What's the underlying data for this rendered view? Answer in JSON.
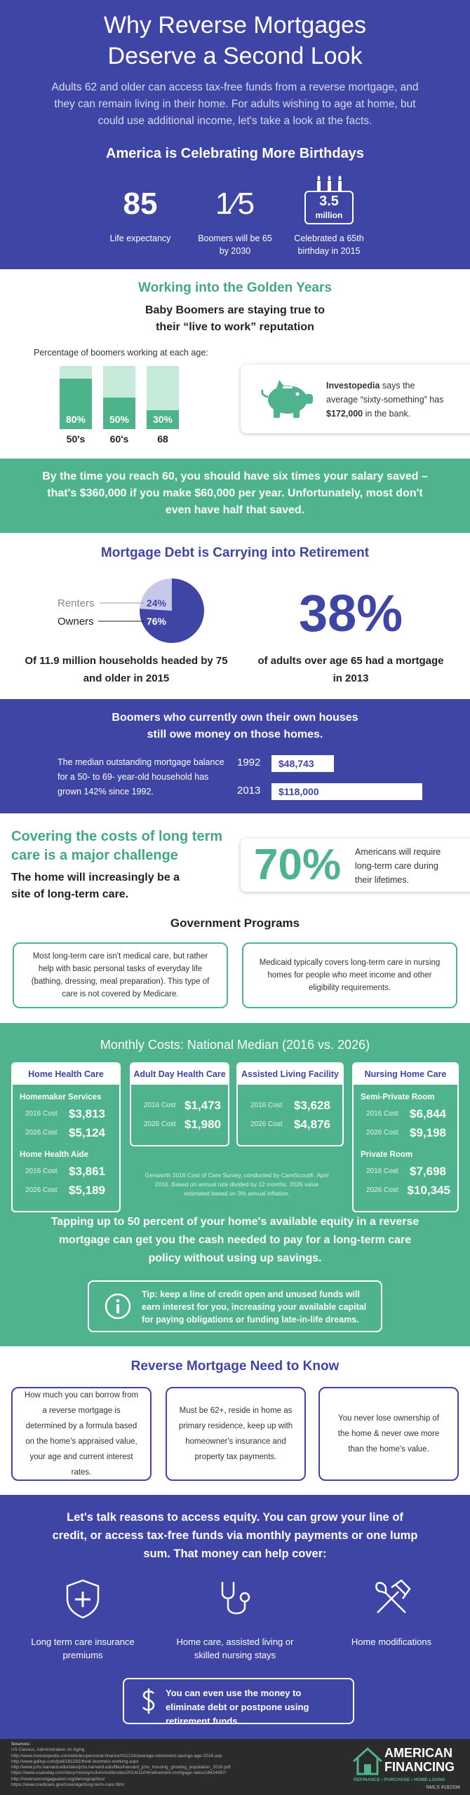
{
  "header": {
    "title": "Why Reverse Mortgages Deserve a Second Look",
    "intro": "Adults 62 and older can access tax-free funds from a reverse mortgage, and they can remain living in their home. For adults wishing to age at home, but could use additional income, let's take a look at the facts.",
    "birthdays_heading": "America is Celebrating More Birthdays",
    "stats": [
      {
        "value": "85",
        "label": "Life expectancy"
      },
      {
        "value": "1⁄5",
        "label": "Boomers will be 65 by 2030"
      },
      {
        "value": "3.5",
        "unit": "million",
        "label": "Celebrated a 65th birthday in 2015"
      }
    ]
  },
  "working": {
    "heading": "Working into the Golden Years",
    "subheading": "Baby Boomers are staying true to their “live to work” reputation",
    "chart_label": "Percentage of boomers working at each age:",
    "bars": [
      {
        "category": "50's",
        "value": 80,
        "value_label": "80%"
      },
      {
        "category": "60's",
        "value": 50,
        "value_label": "50%"
      },
      {
        "category": "68",
        "value": 30,
        "value_label": "30%"
      }
    ],
    "callout": {
      "source": "Investopedia",
      "text_before": " says the average “sixty-something” has ",
      "amount": "$172,000",
      "text_after": " in the bank."
    }
  },
  "savings_banner": "By the time you reach 60, you should have six times your salary saved – that's $360,000 if you make $60,000 per year. Unfortunately, most don't even have half that saved.",
  "mortgage_debt": {
    "heading": "Mortgage Debt is Carrying into Retirement",
    "pie": {
      "slices": [
        {
          "name": "Renters",
          "value": 24,
          "value_label": "24%"
        },
        {
          "name": "Owners",
          "value": 76,
          "value_label": "76%"
        }
      ],
      "caption": "Of 11.9 million households headed by 75 and older in 2015"
    },
    "stat": {
      "value": "38%",
      "caption": "of adults over age 65 had a mortgage in 2013"
    }
  },
  "outstanding": {
    "heading": "Boomers who currently own their own houses still owe money on those homes.",
    "text": "The median outstanding mortgage balance for a 50- to 69- year-old household has grown 142% since 1992.",
    "bars": [
      {
        "year": "1992",
        "value": 48743,
        "value_label": "$48,743"
      },
      {
        "year": "2013",
        "value": 118000,
        "value_label": "$118,000"
      }
    ]
  },
  "long_term_care": {
    "heading": "Covering the costs of long term care is a major challenge",
    "subheading": "The home will increasingly be a site of long-term care.",
    "callout": {
      "value": "70%",
      "text": "Americans will require long-term care during their lifetimes."
    },
    "programs_heading": "Government Programs",
    "programs": [
      "Most long-term care isn't medical care, but rather help with basic personal tasks of everyday life (bathing, dressing, meal preparation). This type of care is not covered by Medicare.",
      "Medicaid typically covers long-term care in nursing homes for people who meet income and other eligibility requirements."
    ]
  },
  "monthly_costs": {
    "heading": "Monthly Costs: National Median (2016 vs. 2026)",
    "cards": [
      {
        "title": "Home Health Care",
        "groups": [
          {
            "name": "Homemaker Services",
            "rows": [
              {
                "label": "2016 Cost",
                "value": "$3,813"
              },
              {
                "label": "2026 Cost",
                "value": "$5,124"
              }
            ]
          },
          {
            "name": "Home Health Aide",
            "rows": [
              {
                "label": "2016 Cost",
                "value": "$3,861"
              },
              {
                "label": "2026 Cost",
                "value": "$5,189"
              }
            ]
          }
        ]
      },
      {
        "title": "Adult Day Health Care",
        "groups": [
          {
            "rows": [
              {
                "label": "2016 Cost",
                "value": "$1,473"
              },
              {
                "label": "2026 Cost",
                "value": "$1,980"
              }
            ]
          }
        ]
      },
      {
        "title": "Assisted Living Facility",
        "groups": [
          {
            "rows": [
              {
                "label": "2016 Cost",
                "value": "$3,628"
              },
              {
                "label": "2026 Cost",
                "value": "$4,876"
              }
            ]
          }
        ]
      },
      {
        "title": "Nursing Home Care",
        "groups": [
          {
            "name": "Semi-Private Room",
            "rows": [
              {
                "label": "2016 Cost",
                "value": "$6,844"
              },
              {
                "label": "2026 Cost",
                "value": "$9,198"
              }
            ]
          },
          {
            "name": "Private Room",
            "rows": [
              {
                "label": "2016 Cost",
                "value": "$7,698"
              },
              {
                "label": "2026 Cost",
                "value": "$10,345"
              }
            ]
          }
        ]
      }
    ],
    "footnote": "Genworth 2016 Cost of Care Survey, conducted by CareScout®, April 2016. Based on annual rate divided by 12 months. 2026 value estimated based on 3% annual inflation.",
    "equity_text": "Tapping up to 50 percent of your home's available equity in a reverse mortgage can get you the cash needed to pay for a long-term care policy without using up savings.",
    "tip": "Tip: keep a line of credit open and unused funds will earn interest for you, increasing your available capital for paying obligations or funding late-in-life dreams."
  },
  "need_to_know": {
    "heading": "Reverse Mortgage Need to Know",
    "items": [
      "How much you can borrow from a reverse mortgage is determined by a formula based on the home's appraised value, your age and current interest rates.",
      "Must be 62+, reside in home as primary residence, keep up with homeowner's insurance and property tax payments.",
      "You never lose ownership of the home & never owe more than the home's value."
    ]
  },
  "reasons": {
    "text": "Let's talk reasons to access equity. You can grow your line of credit, or access tax-free funds via monthly payments or one lump sum. That money can help cover:",
    "items": [
      "Long term care insurance premiums",
      "Home care, assisted living or skilled nursing stays",
      "Home modifications"
    ],
    "callout": "You can even use the money to eliminate debt or postpone using retirement funds."
  },
  "footer": {
    "sources_heading": "Sources:",
    "sources": [
      "US Census, Administration on Aging",
      "http://www.investopedia.com/articles/personal-finance/011216/average-retirement-savings-age-2016.asp",
      "http://www.gallup.com/poll/181292/think-boomers-working.aspx",
      "http://www.jchs.harvard.edu/sites/jchs.harvard.edu/files/harvard_jchs_housing_growing_population_2016.pdf",
      "https://www.usatoday.com/story/money/columnist/brooks/2014/11/04/retirement-mortgage-rates/18424497/",
      "http://reversemortgagealert.org/demographics/",
      "https://www.medicare.gov/coverage/long-term-care.html"
    ],
    "logo": {
      "line1": "AMERICAN",
      "line2": "FINANCING",
      "tagline": "REFINANCE • PURCHASE • HOME LOANS",
      "nmls": "NMLS #182334"
    }
  }
}
